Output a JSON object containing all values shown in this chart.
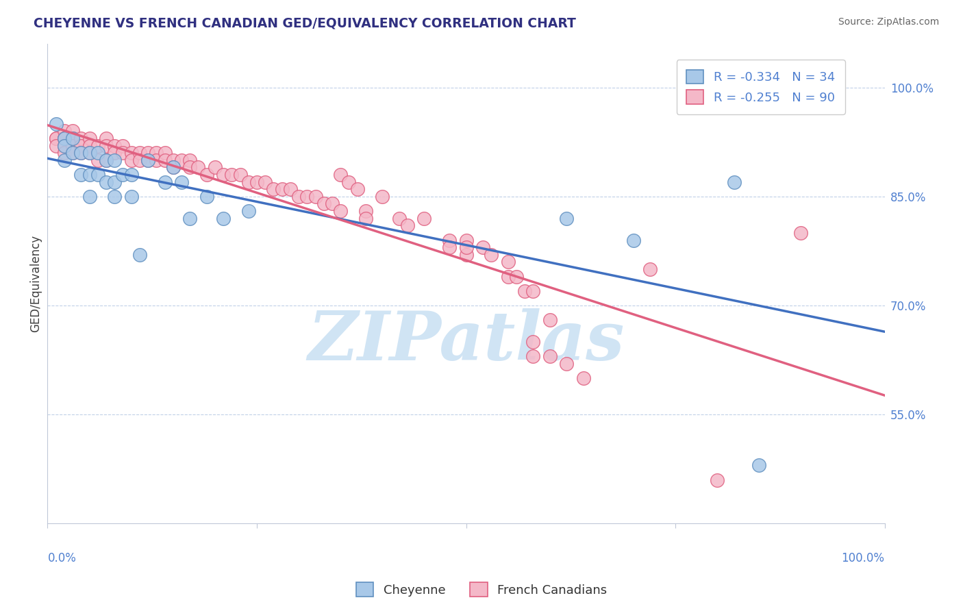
{
  "title": "CHEYENNE VS FRENCH CANADIAN GED/EQUIVALENCY CORRELATION CHART",
  "source": "Source: ZipAtlas.com",
  "ylabel": "GED/Equivalency",
  "yticks": [
    55.0,
    70.0,
    85.0,
    100.0
  ],
  "ytick_labels": [
    "55.0%",
    "70.0%",
    "85.0%",
    "100.0%"
  ],
  "xlim": [
    0.0,
    1.0
  ],
  "ylim": [
    0.4,
    1.06
  ],
  "legend_blue_r": "-0.334",
  "legend_blue_n": "34",
  "legend_pink_r": "-0.255",
  "legend_pink_n": "90",
  "blue_color": "#a8c8e8",
  "pink_color": "#f4b8c8",
  "blue_edge_color": "#6090c0",
  "pink_edge_color": "#e06080",
  "blue_line_color": "#4070c0",
  "pink_line_color": "#e06080",
  "title_color": "#303080",
  "axis_color": "#5080d0",
  "watermark_color": "#d0e4f4",
  "cheyenne_x": [
    0.01,
    0.02,
    0.02,
    0.02,
    0.03,
    0.03,
    0.04,
    0.04,
    0.05,
    0.05,
    0.05,
    0.06,
    0.06,
    0.07,
    0.07,
    0.08,
    0.08,
    0.08,
    0.09,
    0.1,
    0.1,
    0.11,
    0.12,
    0.14,
    0.15,
    0.16,
    0.17,
    0.19,
    0.21,
    0.24,
    0.62,
    0.7,
    0.82,
    0.85
  ],
  "cheyenne_y": [
    0.95,
    0.93,
    0.92,
    0.9,
    0.93,
    0.91,
    0.91,
    0.88,
    0.91,
    0.88,
    0.85,
    0.91,
    0.88,
    0.9,
    0.87,
    0.9,
    0.87,
    0.85,
    0.88,
    0.88,
    0.85,
    0.77,
    0.9,
    0.87,
    0.89,
    0.87,
    0.82,
    0.85,
    0.82,
    0.83,
    0.82,
    0.79,
    0.87,
    0.48
  ],
  "french_x": [
    0.01,
    0.01,
    0.01,
    0.02,
    0.02,
    0.02,
    0.02,
    0.02,
    0.03,
    0.03,
    0.03,
    0.03,
    0.04,
    0.04,
    0.04,
    0.05,
    0.05,
    0.05,
    0.06,
    0.06,
    0.07,
    0.07,
    0.07,
    0.08,
    0.08,
    0.09,
    0.09,
    0.1,
    0.1,
    0.11,
    0.11,
    0.12,
    0.12,
    0.13,
    0.13,
    0.14,
    0.14,
    0.15,
    0.15,
    0.16,
    0.17,
    0.17,
    0.18,
    0.19,
    0.2,
    0.21,
    0.22,
    0.23,
    0.24,
    0.25,
    0.26,
    0.27,
    0.28,
    0.29,
    0.3,
    0.31,
    0.32,
    0.33,
    0.34,
    0.35,
    0.38,
    0.38,
    0.42,
    0.43,
    0.48,
    0.48,
    0.5,
    0.5,
    0.52,
    0.53,
    0.55,
    0.55,
    0.56,
    0.57,
    0.58,
    0.58,
    0.58,
    0.6,
    0.62,
    0.64,
    0.35,
    0.36,
    0.37,
    0.4,
    0.45,
    0.5,
    0.6,
    0.72,
    0.8,
    0.9
  ],
  "french_y": [
    0.93,
    0.93,
    0.92,
    0.94,
    0.93,
    0.93,
    0.92,
    0.91,
    0.94,
    0.93,
    0.92,
    0.91,
    0.93,
    0.92,
    0.91,
    0.93,
    0.92,
    0.91,
    0.92,
    0.9,
    0.93,
    0.92,
    0.9,
    0.92,
    0.91,
    0.92,
    0.91,
    0.91,
    0.9,
    0.91,
    0.9,
    0.91,
    0.9,
    0.91,
    0.9,
    0.91,
    0.9,
    0.9,
    0.89,
    0.9,
    0.9,
    0.89,
    0.89,
    0.88,
    0.89,
    0.88,
    0.88,
    0.88,
    0.87,
    0.87,
    0.87,
    0.86,
    0.86,
    0.86,
    0.85,
    0.85,
    0.85,
    0.84,
    0.84,
    0.83,
    0.83,
    0.82,
    0.82,
    0.81,
    0.79,
    0.78,
    0.79,
    0.77,
    0.78,
    0.77,
    0.76,
    0.74,
    0.74,
    0.72,
    0.72,
    0.65,
    0.63,
    0.63,
    0.62,
    0.6,
    0.88,
    0.87,
    0.86,
    0.85,
    0.82,
    0.78,
    0.68,
    0.75,
    0.46,
    0.8
  ]
}
